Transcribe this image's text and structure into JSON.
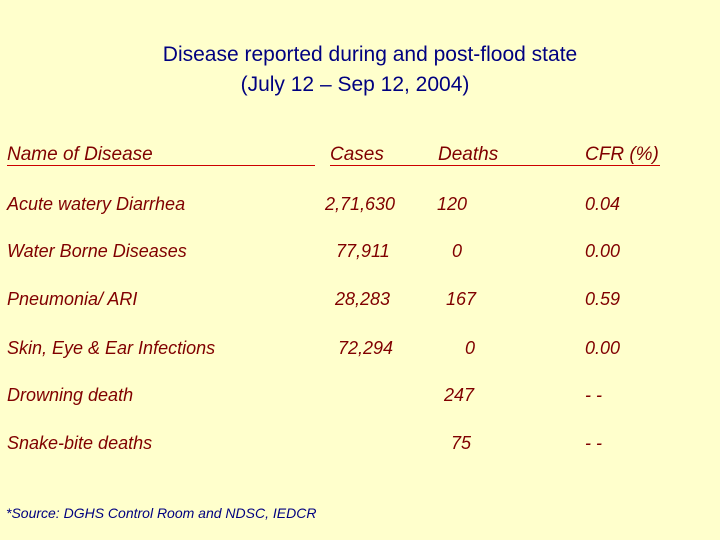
{
  "title_line1": "Disease reported during and post-flood state",
  "title_line2": "(July 12 – Sep 12, 2004)",
  "headers": {
    "name": "Name of  Disease",
    "cases": "Cases",
    "deaths": "Deaths",
    "cfr": "CFR (%)"
  },
  "rows": [
    {
      "name": "Acute watery Diarrhea",
      "cases": "2,71,630",
      "deaths": "120",
      "cfr": "0.04"
    },
    {
      "name": "Water Borne Diseases",
      "cases": "77,911",
      "deaths": "0",
      "cfr": "0.00"
    },
    {
      "name": "Pneumonia/ ARI",
      "cases": "28,283",
      "deaths": "167",
      "cfr": "0.59"
    },
    {
      "name": "Skin, Eye & Ear Infections",
      "cases": "72,294",
      "deaths": "0",
      "cfr": "0.00"
    },
    {
      "name": "Drowning death",
      "cases": "",
      "deaths": "247",
      "cfr": "- -"
    },
    {
      "name": "Snake-bite deaths",
      "cases": "",
      "deaths": "75",
      "cfr": "- -"
    }
  ],
  "source": "*Source: DGHS Control Room and NDSC, IEDCR",
  "colors": {
    "background": "#ffffcc",
    "title": "#000080",
    "text": "#800000",
    "underline": "#cc0000"
  }
}
